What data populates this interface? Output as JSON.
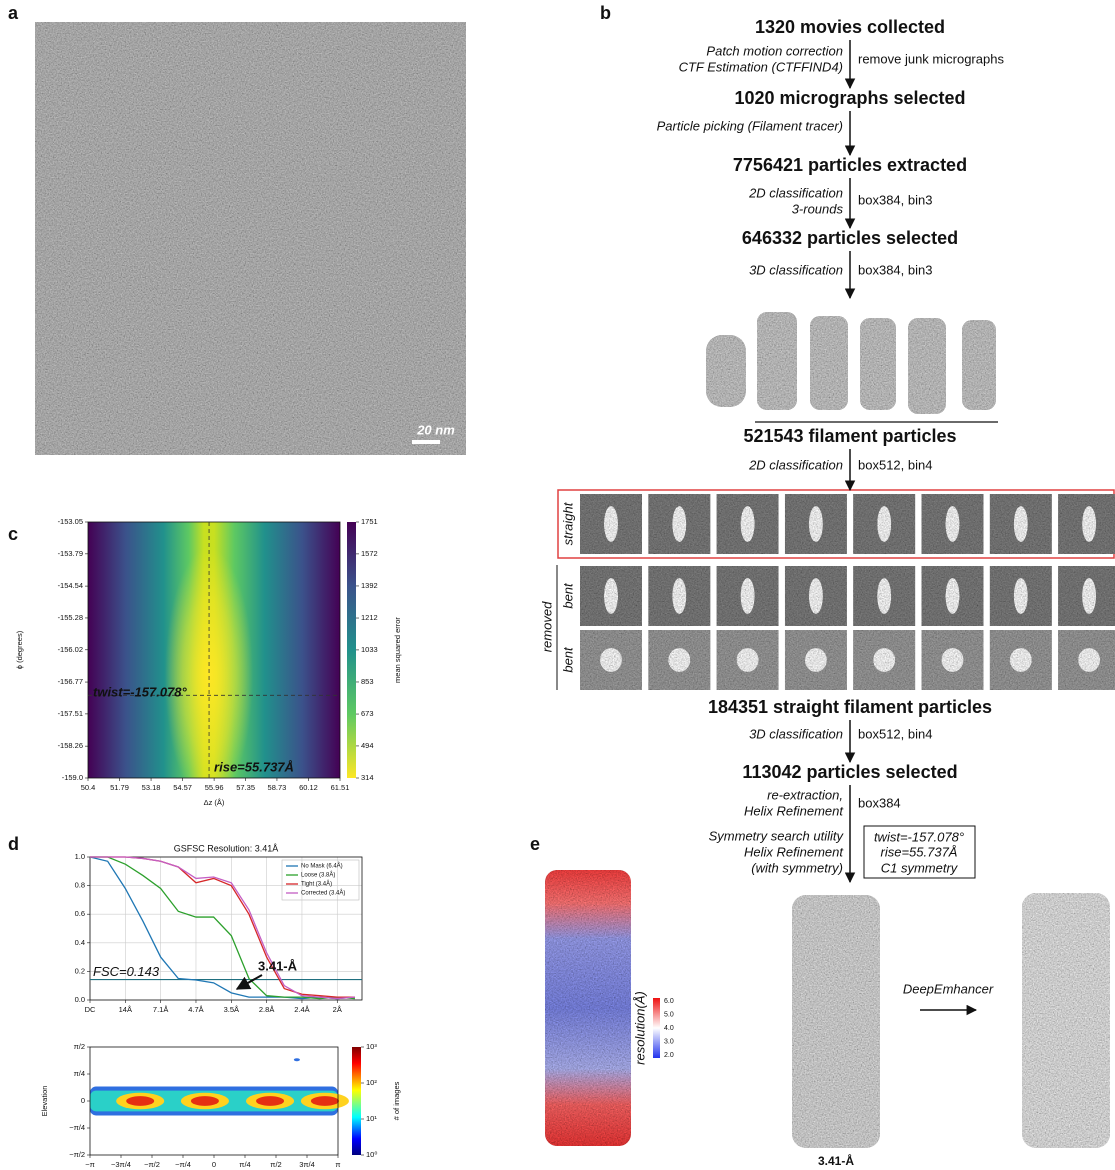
{
  "panel_labels": [
    "a",
    "b",
    "c",
    "d",
    "e"
  ],
  "micrograph": {
    "scale_bar": "20 nm"
  },
  "workflow": {
    "steps": [
      "1320 movies collected",
      "1020 micrographs selected",
      "7756421 particles extracted",
      "646332 particles selected",
      "521543 filament particles",
      "184351 straight filament particles",
      "113042 particles selected"
    ],
    "transitions": [
      {
        "left": [
          "Patch motion correction",
          "CTF Estimation (CTFFIND4)"
        ],
        "right": [
          "remove junk micrographs"
        ]
      },
      {
        "left": [
          "Particle picking (Filament tracer)"
        ]
      },
      {
        "left": [
          "2D classification",
          "3-rounds"
        ],
        "right": [
          "box384, bin3"
        ]
      },
      {
        "left": [
          "3D classification"
        ],
        "right": [
          "box384, bin3"
        ]
      },
      {
        "left": [
          "2D classification"
        ],
        "right": [
          "box512, bin4"
        ]
      },
      {
        "left": [
          "3D classification"
        ],
        "right": [
          "box512, bin4"
        ]
      },
      {
        "left": [
          "re-extraction,",
          "Helix Refinement"
        ],
        "right": [
          "box384"
        ]
      },
      {
        "left": [
          "Symmetry search utility",
          "Helix Refinement",
          "(with symmetry)"
        ],
        "boxed": [
          "twist=-157.078°",
          "rise=55.737Å",
          "C1 symmetry"
        ]
      }
    ],
    "class_rows": [
      "straight",
      "bent",
      "bent"
    ],
    "removed_label": "removed"
  },
  "chart_data": [
    {
      "type": "heatmap",
      "xlabel": "Δz (Å)",
      "ylabel": "ϕ (degrees)",
      "xlim": [
        50.4,
        61.51
      ],
      "xticks": [
        50.4,
        51.79,
        53.18,
        54.57,
        55.96,
        57.35,
        58.73,
        60.12,
        61.51
      ],
      "ylim": [
        -159,
        -153.05
      ],
      "yticks": [
        -153.05,
        -153.79,
        -154.54,
        -155.28,
        -156.02,
        -156.77,
        -157.51,
        -158.26,
        {
          "value": -159,
          "label": "-159.0"
        }
      ],
      "clim": [
        314,
        1751
      ],
      "cticks": [
        314,
        494,
        673,
        853,
        1033,
        1212,
        1392,
        1572,
        1751
      ],
      "clabel": "mean squared error",
      "marker": {
        "x": 55.737,
        "y": -157.078
      },
      "annotations": [
        "twist=-157.078°",
        "rise=55.737Å"
      ]
    },
    {
      "type": "line",
      "title": "GSFSC Resolution: 3.41Å",
      "grid": true,
      "x": [
        0,
        0.5,
        1,
        1.5,
        2,
        2.5,
        3,
        3.5,
        4,
        4.5,
        5,
        5.5,
        6,
        6.5,
        7,
        7.5
      ],
      "xlim": [
        0,
        7.7
      ],
      "xticks": [
        {
          "value": 0,
          "label": "DC"
        },
        {
          "value": 1,
          "label": "14Å"
        },
        {
          "value": 2,
          "label": "7.1Å"
        },
        {
          "value": 3,
          "label": "4.7Å"
        },
        {
          "value": 4,
          "label": "3.5Å"
        },
        {
          "value": 5,
          "label": "2.8Å"
        },
        {
          "value": 6,
          "label": "2.4Å"
        },
        {
          "value": 7,
          "label": "2Å"
        }
      ],
      "ylim": [
        0,
        1
      ],
      "yticks": [
        {
          "value": 0,
          "label": "0.0"
        },
        0.2,
        0.4,
        0.6,
        0.8,
        {
          "value": 1,
          "label": "1.0"
        }
      ],
      "series": [
        {
          "name": "No Mask (6.4Å)",
          "color": "#1f77b4",
          "values": [
            1,
            0.97,
            0.78,
            0.55,
            0.3,
            0.15,
            0.14,
            0.12,
            0.05,
            0.02,
            0.02,
            0.02,
            0.01,
            0.02,
            0.01,
            0.02
          ]
        },
        {
          "name": "Loose (3.8Å)",
          "color": "#2ca02c",
          "values": [
            1,
            1,
            0.95,
            0.87,
            0.78,
            0.62,
            0.58,
            0.58,
            0.45,
            0.15,
            0.03,
            0.02,
            0.02,
            0.01,
            0.02,
            0.01
          ]
        },
        {
          "name": "Tight (3.4Å)",
          "color": "#d62728",
          "values": [
            1,
            1,
            1,
            0.99,
            0.97,
            0.93,
            0.82,
            0.85,
            0.8,
            0.6,
            0.3,
            0.08,
            0.04,
            0.03,
            0.02,
            0.02
          ]
        },
        {
          "name": "Corrected (3.4Å)",
          "color": "#c45ec4",
          "values": [
            1,
            1,
            1,
            0.99,
            0.97,
            0.93,
            0.85,
            0.86,
            0.82,
            0.63,
            0.33,
            0.1,
            0.03,
            0.02,
            0.01,
            0.02
          ]
        }
      ],
      "threshold": 0.143,
      "threshold_color": "#1f6f7f",
      "threshold_label": "FSC=0.143",
      "annotation": "3.41-Å"
    },
    {
      "type": "density",
      "ylabel": "Elevation",
      "clabel": "# of images",
      "log_color": true,
      "xlim": [
        -3.1416,
        3.1416
      ],
      "xticks": [
        {
          "value": -3.1416,
          "label": "−π"
        },
        {
          "value": -2.3562,
          "label": "−3π/4"
        },
        {
          "value": -1.5708,
          "label": "−π/2"
        },
        {
          "value": -0.7854,
          "label": "−π/4"
        },
        0,
        {
          "value": 0.7854,
          "label": "π/4"
        },
        {
          "value": 1.5708,
          "label": "π/2"
        },
        {
          "value": 2.3562,
          "label": "3π/4"
        },
        {
          "value": 3.1416,
          "label": "π"
        }
      ],
      "ylim": [
        -1.5708,
        1.5708
      ],
      "yticks": [
        {
          "value": -1.5708,
          "label": "−π/2"
        },
        {
          "value": -0.7854,
          "label": "−π/4"
        },
        0,
        {
          "value": 0.7854,
          "label": "π/4"
        },
        {
          "value": 1.5708,
          "label": "π/2"
        }
      ],
      "clim": [
        1,
        1000
      ],
      "cticks": [
        {
          "value": 1,
          "label": "10⁰"
        },
        {
          "value": 10,
          "label": "10¹"
        },
        {
          "value": 100,
          "label": "10²"
        },
        {
          "value": 1000,
          "label": "10³"
        }
      ]
    }
  ],
  "maps": {
    "colorbar_label": "resolution(Å)",
    "colorbar_ticks": [
      "6.0",
      "5.0",
      "4.0",
      "3.0",
      "2.0"
    ],
    "arrow_label": "DeepEmhancer",
    "resolution_label": "3.41-Å"
  }
}
